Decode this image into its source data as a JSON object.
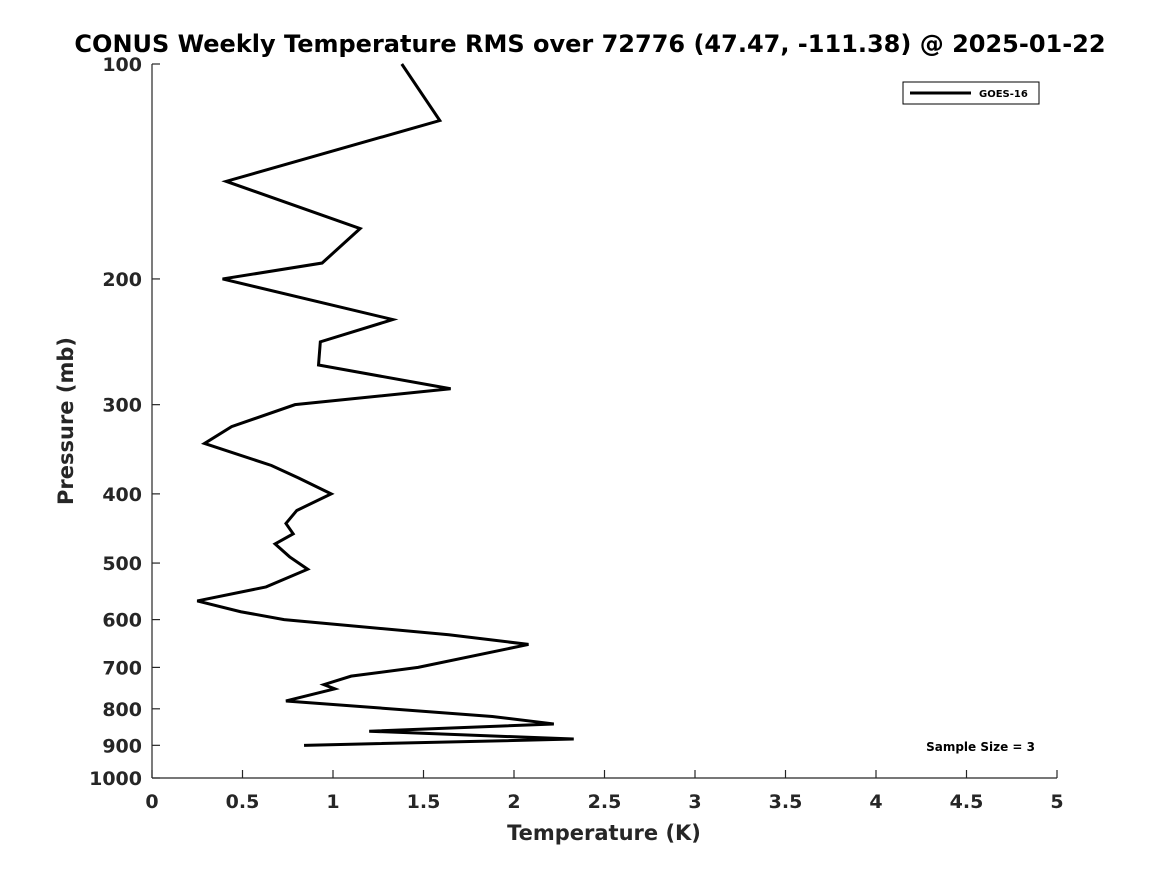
{
  "chart_data": {
    "type": "line",
    "title": "CONUS Weekly Temperature RMS over 72776 (47.47, -111.38) @ 2025-01-22",
    "xlabel": "Temperature (K)",
    "ylabel": "Pressure (mb)",
    "xlim": [
      0,
      5
    ],
    "ylim": [
      100,
      1000
    ],
    "y_scale": "log",
    "y_reversed": true,
    "x_ticks": [
      0,
      0.5,
      1,
      1.5,
      2,
      2.5,
      3,
      3.5,
      4,
      4.5,
      5
    ],
    "x_tick_labels": [
      "0",
      "0.5",
      "1",
      "1.5",
      "2",
      "2.5",
      "3",
      "3.5",
      "4",
      "4.5",
      "5"
    ],
    "y_ticks": [
      100,
      200,
      300,
      400,
      500,
      600,
      700,
      800,
      900,
      1000
    ],
    "y_tick_labels": [
      "100",
      "200",
      "300",
      "400",
      "500",
      "600",
      "700",
      "800",
      "900",
      "1000"
    ],
    "grid": false,
    "legend": {
      "location": "top-right",
      "entries": [
        "GOES-16"
      ]
    },
    "series": [
      {
        "name": "GOES-16",
        "color": "#000000",
        "points": [
          [
            1.38,
            100
          ],
          [
            1.59,
            120
          ],
          [
            0.41,
            146
          ],
          [
            1.15,
            170
          ],
          [
            0.94,
            190
          ],
          [
            0.39,
            200
          ],
          [
            1.33,
            228
          ],
          [
            0.93,
            245
          ],
          [
            0.92,
            264
          ],
          [
            1.65,
            285
          ],
          [
            0.79,
            300
          ],
          [
            0.44,
            322
          ],
          [
            0.29,
            340
          ],
          [
            0.66,
            365
          ],
          [
            0.81,
            380
          ],
          [
            0.99,
            400
          ],
          [
            0.8,
            422
          ],
          [
            0.74,
            440
          ],
          [
            0.78,
            455
          ],
          [
            0.68,
            470
          ],
          [
            0.76,
            490
          ],
          [
            0.86,
            510
          ],
          [
            0.63,
            540
          ],
          [
            0.25,
            565
          ],
          [
            0.49,
            585
          ],
          [
            0.73,
            600
          ],
          [
            1.64,
            630
          ],
          [
            2.08,
            650
          ],
          [
            1.47,
            700
          ],
          [
            1.1,
            720
          ],
          [
            0.95,
            740
          ],
          [
            1.01,
            750
          ],
          [
            0.74,
            780
          ],
          [
            1.88,
            820
          ],
          [
            2.22,
            840
          ],
          [
            1.2,
            860
          ],
          [
            2.33,
            882
          ],
          [
            0.84,
            900
          ]
        ]
      }
    ],
    "annotations": [
      "Sample Size = 3"
    ]
  }
}
